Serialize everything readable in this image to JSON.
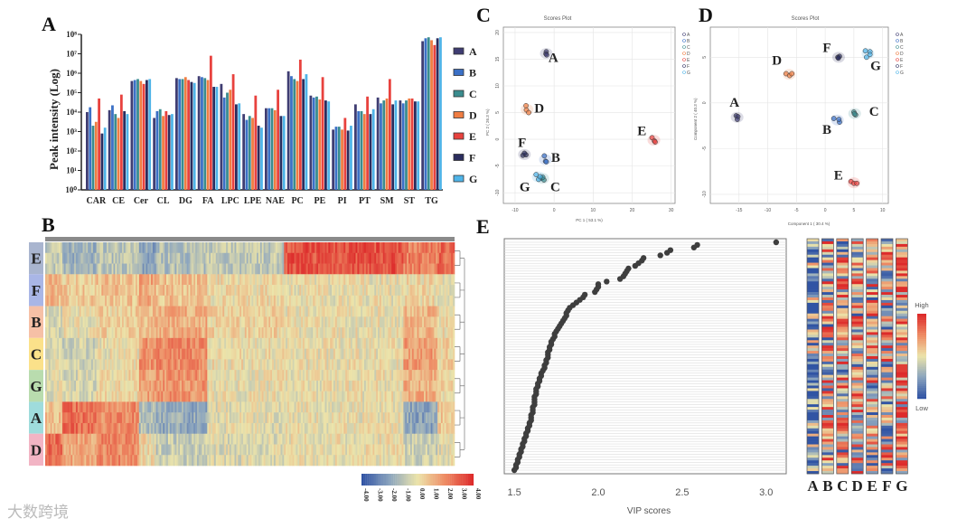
{
  "panels": {
    "a": "A",
    "b": "B",
    "c": "C",
    "d": "D",
    "e": "E"
  },
  "watermark": "大数跨境",
  "group_colors": {
    "A": "#3f3d72",
    "B": "#3b70c6",
    "C": "#3a8c8e",
    "D": "#f07d42",
    "E": "#e8423e",
    "F": "#2b2d5e",
    "G": "#4fb4e8"
  },
  "chart_data": [
    {
      "id": "A",
      "type": "bar",
      "ylabel": "Peak intensity (Log)",
      "yscale": "log10",
      "ylim_exp": [
        0,
        8
      ],
      "ytick_labels": [
        "10⁰",
        "10¹",
        "10²",
        "10³",
        "10⁴",
        "10⁵",
        "10⁶",
        "10⁷",
        "10⁸"
      ],
      "legend_position": "right",
      "categories": [
        "CAR",
        "CE",
        "Cer",
        "CL",
        "DG",
        "FA",
        "LPC",
        "LPE",
        "NAE",
        "PC",
        "PE",
        "PI",
        "PT",
        "SM",
        "ST",
        "TG"
      ],
      "series_log10": [
        {
          "name": "A",
          "values": [
            4.0,
            4.1,
            5.6,
            3.7,
            5.75,
            5.85,
            5.45,
            3.9,
            4.2,
            6.1,
            4.85,
            3.1,
            4.4,
            4.75,
            4.6,
            7.65
          ]
        },
        {
          "name": "B",
          "values": [
            4.25,
            4.35,
            5.65,
            4.05,
            5.7,
            5.8,
            4.75,
            3.6,
            4.2,
            5.85,
            4.75,
            3.25,
            4.05,
            4.45,
            4.45,
            7.8
          ]
        },
        {
          "name": "C",
          "values": [
            3.3,
            3.9,
            5.7,
            4.15,
            5.7,
            5.75,
            5.0,
            3.8,
            4.2,
            5.7,
            4.8,
            3.25,
            4.05,
            4.6,
            4.6,
            7.85
          ]
        },
        {
          "name": "D",
          "values": [
            3.5,
            3.7,
            5.6,
            3.8,
            5.8,
            5.65,
            5.15,
            3.7,
            4.1,
            5.6,
            4.65,
            3.1,
            3.9,
            4.7,
            4.7,
            7.7
          ]
        },
        {
          "name": "E",
          "values": [
            4.7,
            4.9,
            5.45,
            4.05,
            5.65,
            6.9,
            5.95,
            4.85,
            5.15,
            6.7,
            5.8,
            3.7,
            4.8,
            5.7,
            4.7,
            7.45
          ]
        },
        {
          "name": "F",
          "values": [
            2.9,
            4.05,
            5.65,
            3.85,
            5.55,
            5.3,
            4.4,
            3.3,
            3.8,
            5.7,
            4.6,
            3.05,
            3.9,
            4.4,
            4.55,
            7.8
          ]
        },
        {
          "name": "G",
          "values": [
            3.2,
            3.9,
            5.7,
            3.9,
            5.5,
            5.3,
            4.45,
            3.2,
            3.8,
            5.95,
            4.55,
            3.3,
            4.15,
            4.6,
            4.55,
            7.85
          ]
        }
      ]
    },
    {
      "id": "B",
      "type": "heatmap",
      "rows": [
        "E",
        "F",
        "B",
        "C",
        "G",
        "A",
        "D"
      ],
      "row_colors": [
        "#a9b5cf",
        "#a9b6e6",
        "#f6c0a6",
        "#fbe18a",
        "#b9dcae",
        "#9fdcdc",
        "#f2b4c4"
      ],
      "colorbar_range": [
        -4,
        4
      ],
      "colorbar_ticks": [
        "-4.00",
        "-3.00",
        "-2.00",
        "-1.00",
        "0.00",
        "1.00",
        "2.00",
        "3.00",
        "4.00"
      ],
      "column_blocks_features": [
        10,
        20,
        25,
        10,
        30,
        45,
        70,
        20,
        10
      ],
      "block_means": [
        [
          -0.8,
          -1.6,
          -1.0,
          -2.0,
          -1.2,
          -0.9,
          3.2,
          2.2,
          2.8
        ],
        [
          1.0,
          0.6,
          0.8,
          1.4,
          0.8,
          0.2,
          0.0,
          0.2,
          0.0
        ],
        [
          -0.4,
          0.0,
          0.4,
          0.8,
          1.2,
          0.4,
          0.0,
          1.0,
          0.2
        ],
        [
          -0.2,
          -0.6,
          0.0,
          1.8,
          2.0,
          0.1,
          0.0,
          1.6,
          0.4
        ],
        [
          -0.2,
          -0.4,
          0.2,
          1.6,
          1.8,
          0.0,
          0.0,
          1.2,
          0.2
        ],
        [
          0.8,
          2.6,
          2.0,
          -1.2,
          -1.8,
          -0.2,
          0.0,
          -2.0,
          0.6
        ],
        [
          2.6,
          1.4,
          2.0,
          0.2,
          -0.8,
          -0.3,
          0.0,
          -0.6,
          -0.2
        ]
      ]
    },
    {
      "id": "C",
      "type": "scatter",
      "title": "Scores Plot",
      "xlabel": "PC 1 ( 53.1 %)",
      "ylabel": "PC 2 ( 26.3 %)",
      "xlim": [
        -13,
        31
      ],
      "ylim": [
        -12,
        21
      ],
      "xticks": [
        -10,
        0,
        10,
        20,
        30
      ],
      "yticks": [
        -10,
        -5,
        0,
        5,
        10,
        15,
        20
      ],
      "legend": [
        "A",
        "B",
        "C",
        "D",
        "E",
        "F",
        "G"
      ],
      "points": {
        "A": [
          [
            -2,
            16.4
          ],
          [
            -2.1,
            16
          ],
          [
            -1.9,
            15.8
          ]
        ],
        "B": [
          [
            -2.5,
            -3.1
          ],
          [
            -2.2,
            -4.1
          ],
          [
            -2,
            -4.2
          ]
        ],
        "C": [
          [
            -3.2,
            -7.3
          ],
          [
            -2.6,
            -7.6
          ],
          [
            -2.9,
            -7.1
          ]
        ],
        "D": [
          [
            -7.2,
            6.3
          ],
          [
            -7.1,
            5.5
          ],
          [
            -6.5,
            5.0
          ]
        ],
        "E": [
          [
            25.1,
            0.3
          ],
          [
            25.7,
            -0.3
          ],
          [
            25.9,
            -0.5
          ]
        ],
        "F": [
          [
            -8,
            -3.0
          ],
          [
            -7.2,
            -2.9
          ],
          [
            -7.6,
            -2.6
          ]
        ],
        "G": [
          [
            -4.6,
            -6.6
          ],
          [
            -4.0,
            -7.5
          ],
          [
            -3.6,
            -7.0
          ]
        ]
      },
      "point_labels": {
        "A": [
          -0.2,
          14.5
        ],
        "D": [
          -3.8,
          5.0
        ],
        "E": [
          22.5,
          0.8
        ],
        "F": [
          -8.2,
          -1.4
        ],
        "B": [
          0.4,
          -4.2
        ],
        "G": [
          -7.5,
          -9.7
        ],
        "C": [
          0.3,
          -9.7
        ]
      }
    },
    {
      "id": "D",
      "type": "scatter",
      "title": "Scores Plot",
      "xlabel": "Component 1 ( 30.4 %)",
      "ylabel": "Component 2 ( 40.3 %)",
      "xlim": [
        -20,
        11
      ],
      "ylim": [
        -11,
        8.3
      ],
      "xticks": [
        -15,
        -10,
        -5,
        0,
        5,
        10
      ],
      "yticks": [
        -10,
        -5,
        0,
        5
      ],
      "legend": [
        "A",
        "B",
        "C",
        "D",
        "E",
        "F",
        "G"
      ],
      "points": {
        "A": [
          [
            -15.5,
            -1.4
          ],
          [
            -15.2,
            -1.5
          ],
          [
            -15.3,
            -1.8
          ]
        ],
        "B": [
          [
            1.5,
            -1.7
          ],
          [
            2.5,
            -2.1
          ],
          [
            2.4,
            -1.8
          ]
        ],
        "C": [
          [
            5.0,
            -1.0
          ],
          [
            5.3,
            -1.3
          ],
          [
            5.1,
            -1.2
          ]
        ],
        "D": [
          [
            -6.8,
            3.2
          ],
          [
            -6.2,
            3.0
          ],
          [
            -5.8,
            3.2
          ]
        ],
        "E": [
          [
            4.5,
            -8.6
          ],
          [
            5.0,
            -8.8
          ],
          [
            5.5,
            -8.8
          ]
        ],
        "F": [
          [
            2.2,
            5.0
          ],
          [
            2.5,
            5.1
          ],
          [
            2.3,
            4.9
          ]
        ],
        "G": [
          [
            7.0,
            5.7
          ],
          [
            7.8,
            5.6
          ],
          [
            7.2,
            5.0
          ],
          [
            7.8,
            5.3
          ]
        ]
      },
      "point_labels": {
        "A": [
          -15.8,
          -0.4
        ],
        "D": [
          -8.4,
          4.2
        ],
        "F": [
          0.3,
          5.6
        ],
        "G": [
          8.8,
          3.6
        ],
        "C": [
          8.5,
          -1.4
        ],
        "B": [
          0.3,
          -3.4
        ],
        "E": [
          2.3,
          -8.4
        ]
      }
    },
    {
      "id": "E",
      "type": "scatter",
      "xlabel": "VIP scores",
      "xlim": [
        1.44,
        3.12
      ],
      "xticks": [
        "1.5",
        "2.0",
        "2.5",
        "3.0"
      ],
      "vip_values": [
        3.06,
        2.59,
        2.57,
        2.43,
        2.41,
        2.37,
        2.27,
        2.26,
        2.24,
        2.22,
        2.18,
        2.17,
        2.16,
        2.15,
        2.13,
        2.05,
        2.0,
        2.0,
        1.99,
        1.98,
        1.92,
        1.91,
        1.89,
        1.87,
        1.85,
        1.83,
        1.82,
        1.81,
        1.81,
        1.8,
        1.79,
        1.78,
        1.77,
        1.76,
        1.75,
        1.74,
        1.74,
        1.73,
        1.72,
        1.72,
        1.71,
        1.71,
        1.7,
        1.7,
        1.7,
        1.69,
        1.69,
        1.68,
        1.68,
        1.67,
        1.66,
        1.66,
        1.65,
        1.65,
        1.64,
        1.64,
        1.63,
        1.63,
        1.63,
        1.62,
        1.62,
        1.62,
        1.62,
        1.61,
        1.61,
        1.61,
        1.6,
        1.6,
        1.6,
        1.59,
        1.59,
        1.58,
        1.58,
        1.57,
        1.57,
        1.56,
        1.56,
        1.55,
        1.55,
        1.54,
        1.54,
        1.53,
        1.53,
        1.52,
        1.52,
        1.51,
        1.51,
        1.5
      ],
      "heat_columns": [
        "A",
        "B",
        "C",
        "D",
        "E",
        "F",
        "G"
      ],
      "heat_legend": {
        "high": "High",
        "low": "Low"
      }
    }
  ]
}
